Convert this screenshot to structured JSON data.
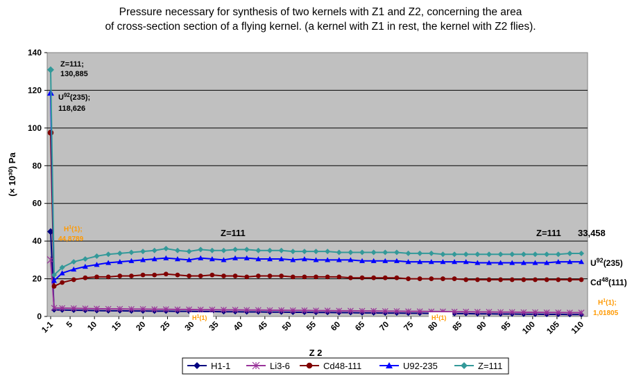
{
  "chart_data": {
    "type": "line",
    "title_lines": [
      "Pressure necessary for synthesis of two kernels with Z1 and Z2, concerning the area",
      "of cross-section section of a flying kernel. (a kernel with Z1 in rest, the kernel with Z2 flies)."
    ],
    "xlabel": "Z 2",
    "ylabel": "(× 10³⁰) Pa",
    "ylim": [
      0,
      140
    ],
    "y_ticks": [
      "0",
      "20",
      "40",
      "60",
      "80",
      "100",
      "120",
      "140"
    ],
    "x_ticks": [
      "1-1",
      "5",
      "10",
      "15",
      "20",
      "25",
      "30",
      "35",
      "40",
      "45",
      "50",
      "55",
      "60",
      "65",
      "70",
      "75",
      "80",
      "85",
      "90",
      "95",
      "100",
      "105",
      "110"
    ],
    "grid": true,
    "legend_position": "bottom",
    "plot_background": "#c0c0c0",
    "series": [
      {
        "name": "H1-1",
        "color": "#000080",
        "marker": "diamond",
        "start": 45.0,
        "values": [
          3.5,
          3.4,
          3.3,
          3.2,
          3.1,
          3.0,
          3.0,
          2.9,
          2.9,
          2.8,
          2.8,
          2.7,
          2.7,
          2.6,
          2.6,
          2.5,
          2.5,
          2.4,
          2.4,
          2.3,
          2.3,
          2.2,
          2.2,
          2.1,
          2.1,
          2.0,
          2.0,
          1.9,
          1.9,
          1.8,
          1.8,
          1.7,
          1.7,
          1.6,
          1.6,
          1.5,
          1.5,
          1.4,
          1.4,
          1.3,
          1.3,
          1.2,
          1.2,
          1.1,
          1.1,
          1.0,
          1.0
        ]
      },
      {
        "name": "Li3-6",
        "color": "#993399",
        "marker": "star",
        "start": 30.0,
        "values": [
          4.5,
          4.4,
          4.3,
          4.2,
          4.1,
          4.0,
          4.0,
          3.9,
          3.9,
          3.8,
          3.8,
          3.7,
          3.7,
          3.6,
          3.6,
          3.5,
          3.5,
          3.4,
          3.4,
          3.3,
          3.3,
          3.2,
          3.2,
          3.1,
          3.1,
          3.0,
          3.0,
          2.9,
          2.9,
          2.8,
          2.8,
          2.7,
          2.7,
          2.6,
          2.6,
          2.5,
          2.5,
          2.4,
          2.4,
          2.3,
          2.3,
          2.2,
          2.2,
          2.1,
          2.1,
          2.0,
          2.0
        ]
      },
      {
        "name": "Cd48-111",
        "color": "#800000",
        "marker": "circle",
        "start": 97.5,
        "values": [
          16,
          18,
          19.5,
          20.5,
          21,
          21,
          21.5,
          21.5,
          22,
          22,
          22.5,
          22,
          21.5,
          21.5,
          22,
          21.5,
          21.5,
          21,
          21.5,
          21.5,
          21.5,
          21,
          21,
          21,
          21,
          21,
          20.5,
          20.5,
          20.5,
          20.5,
          20.5,
          20,
          20,
          20,
          20,
          20,
          19.5,
          19.5,
          19.5,
          19.5,
          19.5,
          19.5,
          19.5,
          19.5,
          19.5,
          19.5,
          19.5
        ]
      },
      {
        "name": "U92-235",
        "color": "#0000ff",
        "marker": "triangle",
        "start": 118.626,
        "values": [
          19,
          23,
          25,
          26.5,
          27.5,
          28.5,
          29,
          29.5,
          30,
          30.5,
          31,
          30.5,
          30,
          31,
          30.5,
          30,
          31,
          31,
          30.5,
          30.5,
          30.5,
          30,
          30.5,
          30,
          30,
          30,
          30,
          29.5,
          29.5,
          29.5,
          29.5,
          29,
          29,
          29,
          29,
          29,
          29,
          28.5,
          28.5,
          28.5,
          28.5,
          28.5,
          28.5,
          28.5,
          29,
          29,
          29
        ]
      },
      {
        "name": "Z=111",
        "color": "#339999",
        "marker": "diamond",
        "start": 130.885,
        "values": [
          22,
          26,
          29,
          30.5,
          32,
          33,
          33.5,
          34,
          34.5,
          35,
          36,
          35,
          34.5,
          35.5,
          35,
          35,
          35.5,
          35.5,
          35,
          35,
          35,
          34.5,
          34.5,
          34.5,
          34.5,
          34,
          34,
          34,
          34,
          34,
          34,
          33.5,
          33.5,
          33.5,
          33,
          33,
          33,
          33,
          33,
          33,
          33,
          33,
          33,
          33,
          33,
          33.458,
          33.458
        ]
      }
    ],
    "annotations": {
      "z111_top_a": "Z=111;",
      "z111_top_b": "130,885",
      "u92_top_a": "U",
      "u92_top_sup": "92",
      "u92_top_c": "(235);",
      "u92_top_d": "118,626",
      "h1_left_a": "H",
      "h1_left_sup": "1",
      "h1_left_c": "(1);",
      "h1_left_d": "44,8789",
      "z111_mid": "Z=111",
      "z111_right": "Z=111",
      "z111_right_value": "33,458",
      "u92_right_a": "U",
      "u92_right_sup": "92",
      "u92_right_c": "(235)",
      "cd48_right_a": "Cd",
      "cd48_right_sup": "48",
      "cd48_right_c": "(111)",
      "h1_right_a": "H",
      "h1_right_sup": "1",
      "h1_right_c": "(1);",
      "h1_right_d": "1,01805",
      "h1_box_a": "H",
      "h1_box_sup": "1",
      "h1_box_c": "(1)",
      "h1_box2_a": "H",
      "h1_box2_sup": "1",
      "h1_box2_c": "(1)"
    }
  }
}
